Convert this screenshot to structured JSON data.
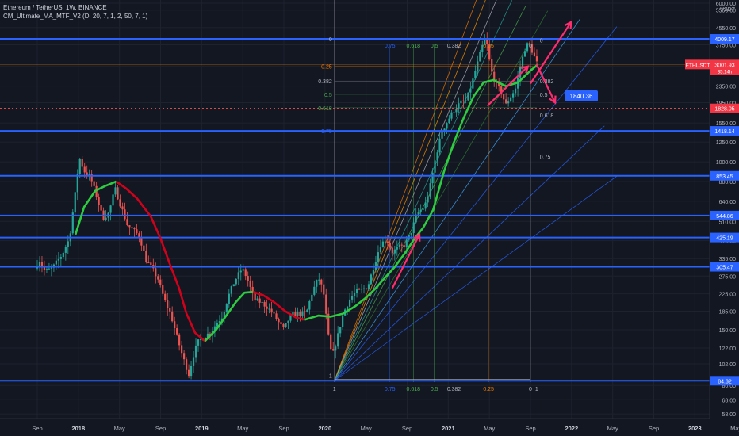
{
  "legend": {
    "symbol_line": "Ethereum / TetherUS, 1W, BINANCE",
    "indicator_line": "CM_Ultimate_MA_MTF_V2 (D, 20, 7, 1, 2, 50, 7, 1)"
  },
  "colors": {
    "background": "#131722",
    "grid": "#1e222d",
    "candle_up": "#26a69a",
    "candle_down": "#ef5350",
    "hline": "#2962ff",
    "ma_up": "#2ecc40",
    "ma_down": "#d0021b",
    "arrow": "#ff2d6f",
    "price_label": "#2962ff",
    "current_price_label": "#f23645"
  },
  "chart_data": {
    "type": "candlestick",
    "y_scale": "log",
    "ylim": [
      55,
      6000
    ],
    "y_unit_label": "USDT",
    "y_ticks": [
      58.0,
      68.0,
      80.0,
      102.0,
      122.0,
      150.0,
      185.0,
      225.0,
      275.0,
      335.0,
      410.0,
      510.0,
      640.0,
      800.0,
      1000.0,
      1250.0,
      1550.0,
      1950.0,
      2350.0,
      2950.0,
      3750.0,
      4550.0,
      5550.0,
      6000.0
    ],
    "x_ticks": [
      {
        "t": 0.0,
        "label": "Sep"
      },
      {
        "t": 0.333,
        "label": "2018"
      },
      {
        "t": 0.667,
        "label": "May"
      },
      {
        "t": 1.0,
        "label": "Sep"
      },
      {
        "t": 1.333,
        "label": "2019"
      },
      {
        "t": 1.667,
        "label": "May"
      },
      {
        "t": 2.0,
        "label": "Sep"
      },
      {
        "t": 2.333,
        "label": "2020"
      },
      {
        "t": 2.667,
        "label": "May"
      },
      {
        "t": 3.0,
        "label": "Sep"
      },
      {
        "t": 3.333,
        "label": "2021"
      },
      {
        "t": 3.667,
        "label": "May"
      },
      {
        "t": 4.0,
        "label": "Sep"
      },
      {
        "t": 4.333,
        "label": "2022"
      },
      {
        "t": 4.667,
        "label": "May"
      },
      {
        "t": 5.0,
        "label": "Sep"
      },
      {
        "t": 5.333,
        "label": "2023"
      },
      {
        "t": 5.667,
        "label": "May"
      }
    ],
    "horizontal_levels": [
      {
        "value": 4009.17,
        "label": "4009.17"
      },
      {
        "value": 1418.14,
        "label": "1418.14"
      },
      {
        "value": 853.45,
        "label": "853.45"
      },
      {
        "value": 544.86,
        "label": "544.86"
      },
      {
        "value": 425.19,
        "label": "425.19"
      },
      {
        "value": 305.47,
        "label": "305.47"
      },
      {
        "value": 84.32,
        "label": "84.32"
      }
    ],
    "dotted_level": {
      "value": 1828.05,
      "label": "1828.05"
    },
    "current_price": {
      "value": 3001.93,
      "tag": "ETHUSDT",
      "price": "3001.93",
      "sub": "35:14h"
    },
    "target_label": {
      "value": 1840.36,
      "label": "1840.36"
    },
    "fib_retracement_left": [
      {
        "label": "0",
        "value": 4009.17,
        "color": "#b2b5be"
      },
      {
        "label": "0.25",
        "value": 2943,
        "color": "#f57c00"
      },
      {
        "label": "0.382",
        "value": 2490,
        "color": "#b2b5be"
      },
      {
        "label": "0.5",
        "value": 2142,
        "color": "#4caf50"
      },
      {
        "label": "0.618",
        "value": 1842,
        "color": "#4caf50"
      },
      {
        "label": "0.75",
        "value": 1420,
        "color": "#2962ff"
      },
      {
        "label": "1",
        "value": 84.32,
        "color": "#b2b5be"
      }
    ],
    "fib_retracement_right": [
      {
        "label": "0",
        "value": 3950
      },
      {
        "label": "0.382",
        "value": 2490
      },
      {
        "label": "0.5",
        "value": 2142
      },
      {
        "label": "0.618",
        "value": 1700
      },
      {
        "label": "0.75",
        "value": 1060
      }
    ],
    "fib_time_top": [
      {
        "label": "0.75",
        "t": 2.86,
        "color": "#2962ff"
      },
      {
        "label": "0.618",
        "t": 3.05,
        "color": "#4caf50"
      },
      {
        "label": "0.5",
        "t": 3.22,
        "color": "#4caf50"
      },
      {
        "label": "0.382",
        "t": 3.38,
        "color": "#b2b5be"
      },
      {
        "label": "0.25",
        "t": 3.66,
        "color": "#f57c00"
      },
      {
        "label": "0",
        "t": 4.0,
        "color": "#b2b5be"
      }
    ],
    "fib_time_bottom": [
      {
        "label": "1",
        "t": 2.41,
        "color": "#b2b5be"
      },
      {
        "label": "0.75",
        "t": 2.86,
        "color": "#2962ff"
      },
      {
        "label": "0.618",
        "t": 3.05,
        "color": "#4caf50"
      },
      {
        "label": "0.5",
        "t": 3.22,
        "color": "#4caf50"
      },
      {
        "label": "0.382",
        "t": 3.38,
        "color": "#b2b5be"
      },
      {
        "label": "0.25",
        "t": 3.66,
        "color": "#f57c00"
      },
      {
        "label": "0",
        "t": 4.0,
        "color": "#b2b5be"
      },
      {
        "label": "1",
        "t": 4.05,
        "color": "#b2b5be"
      }
    ],
    "fan_origin": {
      "t": 2.41,
      "value": 84.32
    },
    "fan_lines": [
      {
        "t": 3.66,
        "value": 9000,
        "color": "#f57c00"
      },
      {
        "t": 3.7,
        "value": 7800,
        "color": "#ff9800"
      },
      {
        "t": 3.76,
        "value": 7000,
        "color": "#b2b5be"
      },
      {
        "t": 3.85,
        "value": 6200,
        "color": "#26a69a"
      },
      {
        "t": 3.96,
        "value": 5800,
        "color": "#4caf50"
      },
      {
        "t": 4.14,
        "value": 5500,
        "color": "#2e7d32"
      },
      {
        "t": 4.4,
        "value": 5000,
        "color": "#42a5f5"
      },
      {
        "t": 4.7,
        "value": 4600,
        "color": "#2962ff"
      },
      {
        "t": 4.6,
        "value": 1500,
        "color": "#2962ff"
      },
      {
        "t": 4.7,
        "value": 850,
        "color": "#2962ff"
      }
    ],
    "arrows": [
      {
        "from": {
          "t": 4.0,
          "value": 2420
        },
        "to": {
          "t": 4.33,
          "value": 4850
        }
      },
      {
        "from": {
          "t": 4.05,
          "value": 3000
        },
        "to": {
          "t": 4.2,
          "value": 1950
        }
      },
      {
        "from": {
          "t": 3.65,
          "value": 1880
        },
        "to": {
          "t": 3.98,
          "value": 2940
        }
      },
      {
        "from": {
          "t": 2.88,
          "value": 240
        },
        "to": {
          "t": 3.1,
          "value": 440
        }
      }
    ],
    "ma_segments": [
      {
        "trend": "up",
        "points": [
          [
            0.31,
            440
          ],
          [
            0.38,
            600
          ],
          [
            0.47,
            720
          ],
          [
            0.55,
            760
          ],
          [
            0.64,
            800
          ]
        ]
      },
      {
        "trend": "down",
        "points": [
          [
            0.64,
            800
          ],
          [
            0.72,
            740
          ],
          [
            0.81,
            660
          ],
          [
            0.92,
            540
          ],
          [
            1.0,
            420
          ],
          [
            1.08,
            310
          ],
          [
            1.15,
            240
          ],
          [
            1.21,
            180
          ],
          [
            1.28,
            145
          ],
          [
            1.36,
            132
          ]
        ]
      },
      {
        "trend": "up",
        "points": [
          [
            1.36,
            132
          ],
          [
            1.45,
            150
          ],
          [
            1.53,
            175
          ],
          [
            1.61,
            205
          ],
          [
            1.68,
            228
          ],
          [
            1.75,
            230
          ]
        ]
      },
      {
        "trend": "down",
        "points": [
          [
            1.75,
            230
          ],
          [
            1.83,
            222
          ],
          [
            1.92,
            205
          ],
          [
            2.01,
            185
          ],
          [
            2.1,
            172
          ],
          [
            2.17,
            168
          ]
        ]
      },
      {
        "trend": "up",
        "points": [
          [
            2.17,
            168
          ],
          [
            2.28,
            176
          ],
          [
            2.38,
            174
          ],
          [
            2.48,
            180
          ],
          [
            2.58,
            196
          ],
          [
            2.66,
            214
          ],
          [
            2.74,
            238
          ],
          [
            2.82,
            270
          ],
          [
            2.9,
            305
          ],
          [
            2.98,
            355
          ],
          [
            3.06,
            420
          ],
          [
            3.13,
            475
          ],
          [
            3.21,
            580
          ],
          [
            3.3,
            900
          ],
          [
            3.38,
            1250
          ],
          [
            3.46,
            1650
          ],
          [
            3.54,
            2100
          ],
          [
            3.62,
            2450
          ],
          [
            3.7,
            2520
          ],
          [
            3.8,
            2350
          ],
          [
            3.9,
            2450
          ],
          [
            4.0,
            2800
          ],
          [
            4.06,
            3000
          ]
        ]
      }
    ],
    "price_path": [
      [
        0.0,
        300
      ],
      [
        0.04,
        330
      ],
      [
        0.08,
        290
      ],
      [
        0.14,
        300
      ],
      [
        0.22,
        350
      ],
      [
        0.28,
        420
      ],
      [
        0.33,
        720
      ],
      [
        0.36,
        1050
      ],
      [
        0.4,
        900
      ],
      [
        0.45,
        840
      ],
      [
        0.5,
        680
      ],
      [
        0.55,
        530
      ],
      [
        0.6,
        560
      ],
      [
        0.65,
        740
      ],
      [
        0.7,
        600
      ],
      [
        0.75,
        490
      ],
      [
        0.8,
        460
      ],
      [
        0.85,
        430
      ],
      [
        0.9,
        330
      ],
      [
        0.95,
        300
      ],
      [
        1.0,
        265
      ],
      [
        1.05,
        210
      ],
      [
        1.1,
        180
      ],
      [
        1.15,
        140
      ],
      [
        1.2,
        110
      ],
      [
        1.25,
        90
      ],
      [
        1.28,
        110
      ],
      [
        1.32,
        130
      ],
      [
        1.38,
        140
      ],
      [
        1.42,
        145
      ],
      [
        1.47,
        160
      ],
      [
        1.52,
        175
      ],
      [
        1.57,
        220
      ],
      [
        1.62,
        260
      ],
      [
        1.68,
        300
      ],
      [
        1.72,
        270
      ],
      [
        1.78,
        210
      ],
      [
        1.83,
        205
      ],
      [
        1.88,
        195
      ],
      [
        1.93,
        180
      ],
      [
        1.97,
        165
      ],
      [
        2.02,
        150
      ],
      [
        2.06,
        170
      ],
      [
        2.1,
        180
      ],
      [
        2.15,
        180
      ],
      [
        2.2,
        180
      ],
      [
        2.25,
        230
      ],
      [
        2.3,
        270
      ],
      [
        2.34,
        230
      ],
      [
        2.38,
        140
      ],
      [
        2.41,
        110
      ],
      [
        2.45,
        135
      ],
      [
        2.5,
        180
      ],
      [
        2.55,
        210
      ],
      [
        2.6,
        230
      ],
      [
        2.65,
        235
      ],
      [
        2.7,
        245
      ],
      [
        2.75,
        310
      ],
      [
        2.8,
        390
      ],
      [
        2.85,
        420
      ],
      [
        2.9,
        360
      ],
      [
        2.95,
        380
      ],
      [
        3.0,
        390
      ],
      [
        3.05,
        450
      ],
      [
        3.1,
        560
      ],
      [
        3.16,
        600
      ],
      [
        3.2,
        730
      ],
      [
        3.25,
        1050
      ],
      [
        3.3,
        1400
      ],
      [
        3.35,
        1600
      ],
      [
        3.4,
        1800
      ],
      [
        3.45,
        1950
      ],
      [
        3.5,
        2000
      ],
      [
        3.55,
        2500
      ],
      [
        3.6,
        3200
      ],
      [
        3.64,
        3900
      ],
      [
        3.66,
        4000
      ],
      [
        3.7,
        2800
      ],
      [
        3.74,
        2400
      ],
      [
        3.78,
        2200
      ],
      [
        3.82,
        1900
      ],
      [
        3.86,
        2100
      ],
      [
        3.9,
        2300
      ],
      [
        3.94,
        3000
      ],
      [
        3.98,
        3700
      ],
      [
        4.01,
        3800
      ],
      [
        4.04,
        3400
      ],
      [
        4.07,
        3050
      ]
    ]
  }
}
